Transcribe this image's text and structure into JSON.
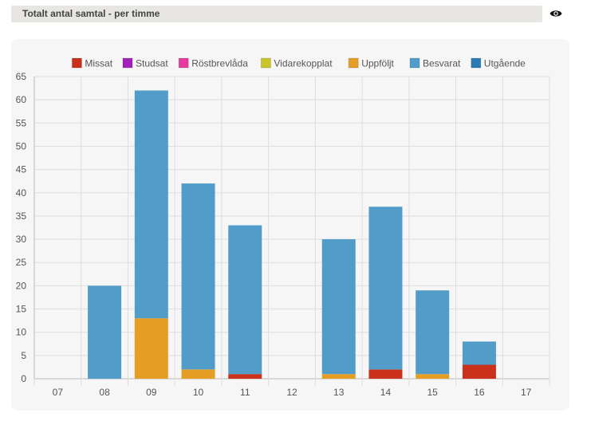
{
  "header": {
    "title": "Totalt antal samtal - per timme",
    "toggle_icon": "eye-icon"
  },
  "chart_data": {
    "type": "bar",
    "stacked": true,
    "title": "",
    "xlabel": "",
    "ylabel": "",
    "categories": [
      "07",
      "08",
      "09",
      "10",
      "11",
      "12",
      "13",
      "14",
      "15",
      "16",
      "17"
    ],
    "ylim": [
      0,
      65
    ],
    "yticks": [
      0,
      5,
      10,
      15,
      20,
      25,
      30,
      35,
      40,
      45,
      50,
      55,
      60,
      65
    ],
    "grid": true,
    "legend_position": "top",
    "series": [
      {
        "name": "Missat",
        "color": "#c9311b",
        "values": [
          0,
          0,
          0,
          0,
          1,
          0,
          0,
          2,
          0,
          3,
          0
        ]
      },
      {
        "name": "Studsat",
        "color": "#a61fbf",
        "values": [
          0,
          0,
          0,
          0,
          0,
          0,
          0,
          0,
          0,
          0,
          0
        ]
      },
      {
        "name": "Röstbrevlåda",
        "color": "#e33c9e",
        "values": [
          0,
          0,
          0,
          0,
          0,
          0,
          0,
          0,
          0,
          0,
          0
        ]
      },
      {
        "name": "Vidarekopplat",
        "color": "#c8c42a",
        "values": [
          0,
          0,
          0,
          0,
          0,
          0,
          0,
          0,
          0,
          0,
          0
        ]
      },
      {
        "name": "Uppföljt",
        "color": "#e49e23",
        "values": [
          0,
          0,
          13,
          2,
          0,
          0,
          1,
          0,
          1,
          0,
          0
        ]
      },
      {
        "name": "Besvarat",
        "color": "#519cc8",
        "values": [
          0,
          20,
          49,
          40,
          32,
          0,
          29,
          35,
          18,
          5,
          0
        ]
      },
      {
        "name": "Utgående",
        "color": "#2a7ab5",
        "values": [
          0,
          0,
          0,
          0,
          0,
          0,
          0,
          0,
          0,
          0,
          0
        ]
      }
    ]
  }
}
